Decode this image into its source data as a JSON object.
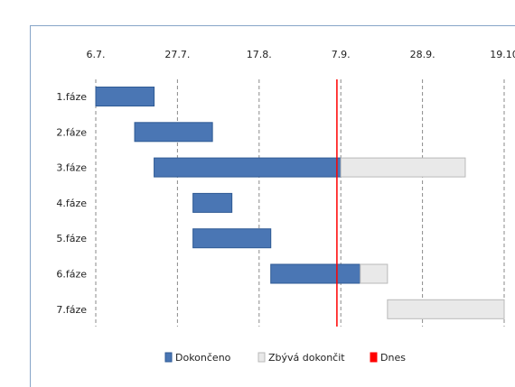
{
  "chart_data": {
    "type": "bar",
    "orientation": "horizontal",
    "stacked": true,
    "categories": [
      "1.fáze",
      "2.fáze",
      "3.fáze",
      "4.fáze",
      "5.fáze",
      "6.fáze",
      "7.fáze"
    ],
    "x_ticks": [
      "6.7.",
      "27.7.",
      "17.8.",
      "7.9.",
      "28.9.",
      "19.10"
    ],
    "x_tick_values": [
      0,
      21,
      42,
      63,
      84,
      105
    ],
    "xlim": [
      0,
      105
    ],
    "series": [
      {
        "name": "Dokončeno",
        "color": "#4a76b4",
        "start": [
          0,
          10,
          15,
          25,
          25,
          45,
          75
        ],
        "duration": [
          15,
          20,
          48,
          10,
          20,
          23,
          0
        ]
      },
      {
        "name": "Zbývá dokončit",
        "color": "#e9e9e9",
        "start": [
          15,
          30,
          63,
          35,
          45,
          68,
          75
        ],
        "duration": [
          0,
          0,
          32,
          0,
          0,
          7,
          30
        ]
      }
    ],
    "today": {
      "name": "Dnes",
      "value": 62,
      "color": "#ff0000"
    },
    "gridlines": "dashed-vertical",
    "legend": "bottom"
  }
}
